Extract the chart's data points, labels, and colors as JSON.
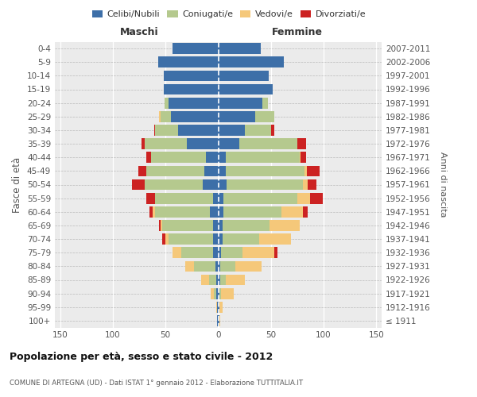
{
  "age_groups": [
    "100+",
    "95-99",
    "90-94",
    "85-89",
    "80-84",
    "75-79",
    "70-74",
    "65-69",
    "60-64",
    "55-59",
    "50-54",
    "45-49",
    "40-44",
    "35-39",
    "30-34",
    "25-29",
    "20-24",
    "15-19",
    "10-14",
    "5-9",
    "0-4"
  ],
  "birth_years": [
    "≤ 1911",
    "1912-1916",
    "1917-1921",
    "1922-1926",
    "1927-1931",
    "1932-1936",
    "1937-1941",
    "1942-1946",
    "1947-1951",
    "1952-1956",
    "1957-1961",
    "1962-1966",
    "1967-1971",
    "1972-1976",
    "1977-1981",
    "1982-1986",
    "1987-1991",
    "1992-1996",
    "1997-2001",
    "2002-2006",
    "2007-2011"
  ],
  "colors": {
    "celibi": "#3d6fa8",
    "coniugati": "#b5c98e",
    "vedovi": "#f5c87a",
    "divorziati": "#cc2222"
  },
  "males": {
    "celibi": [
      1,
      1,
      2,
      2,
      3,
      5,
      5,
      5,
      8,
      5,
      15,
      13,
      12,
      30,
      38,
      45,
      47,
      52,
      52,
      57,
      43
    ],
    "coniugati": [
      0,
      0,
      2,
      7,
      20,
      30,
      42,
      48,
      52,
      55,
      55,
      55,
      52,
      40,
      22,
      10,
      4,
      0,
      0,
      0,
      0
    ],
    "vedovi": [
      0,
      1,
      3,
      7,
      8,
      8,
      3,
      2,
      2,
      0,
      0,
      0,
      0,
      0,
      0,
      1,
      0,
      0,
      0,
      0,
      0
    ],
    "divorziati": [
      0,
      0,
      0,
      0,
      0,
      0,
      3,
      1,
      3,
      8,
      12,
      8,
      4,
      3,
      1,
      0,
      0,
      0,
      0,
      0,
      0
    ]
  },
  "females": {
    "nubili": [
      1,
      1,
      1,
      2,
      2,
      3,
      4,
      4,
      5,
      5,
      8,
      7,
      7,
      20,
      25,
      35,
      42,
      52,
      48,
      62,
      40
    ],
    "coniugate": [
      0,
      0,
      2,
      5,
      14,
      20,
      35,
      45,
      55,
      70,
      72,
      75,
      70,
      55,
      25,
      18,
      5,
      0,
      0,
      0,
      0
    ],
    "vedove": [
      1,
      3,
      12,
      18,
      25,
      30,
      30,
      28,
      20,
      12,
      5,
      2,
      1,
      0,
      0,
      0,
      0,
      0,
      0,
      0,
      0
    ],
    "divorziate": [
      0,
      0,
      0,
      0,
      0,
      3,
      0,
      0,
      5,
      12,
      8,
      12,
      5,
      8,
      3,
      0,
      0,
      0,
      0,
      0,
      0
    ]
  },
  "xlim": 155,
  "title1": "Popolazione per età, sesso e stato civile - 2012",
  "title2": "COMUNE DI ARTEGNA (UD) - Dati ISTAT 1° gennaio 2012 - Elaborazione TUTTITALIA.IT",
  "ylabel_left": "Fasce di età",
  "ylabel_right": "Anni di nascita",
  "label_maschi": "Maschi",
  "label_femmine": "Femmine",
  "legend": [
    "Celibi/Nubili",
    "Coniugati/e",
    "Vedovi/e",
    "Divorziati/e"
  ],
  "bg_color": "#ebebeb"
}
